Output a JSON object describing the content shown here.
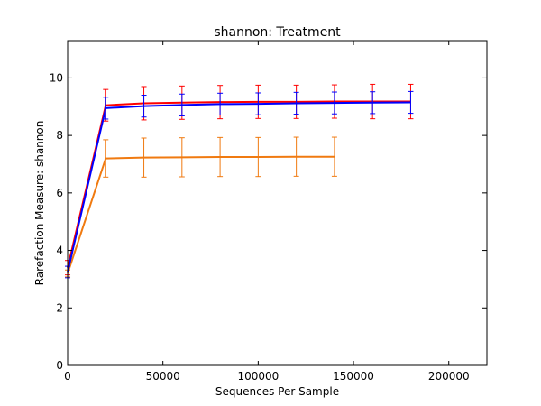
{
  "chart_data": {
    "type": "line",
    "title": "shannon: Treatment",
    "xlabel": "Sequences Per Sample",
    "ylabel": "Rarefaction Measure: shannon",
    "xlim": [
      0,
      220000
    ],
    "ylim": [
      0,
      11.3
    ],
    "x_ticks": [
      0,
      50000,
      100000,
      150000,
      200000
    ],
    "y_ticks": [
      0,
      2,
      4,
      6,
      8,
      10
    ],
    "grid": false,
    "legend": "none",
    "series": [
      {
        "color": "#ff0000",
        "x": [
          10,
          20000,
          40000,
          60000,
          80000,
          100000,
          120000,
          140000,
          160000,
          180000
        ],
        "y": [
          3.4,
          9.05,
          9.12,
          9.14,
          9.16,
          9.17,
          9.17,
          9.18,
          9.18,
          9.18
        ],
        "err": [
          0.25,
          0.55,
          0.58,
          0.58,
          0.58,
          0.58,
          0.58,
          0.58,
          0.6,
          0.6
        ]
      },
      {
        "color": "#0000ff",
        "x": [
          10,
          20000,
          40000,
          60000,
          80000,
          100000,
          120000,
          140000,
          160000,
          180000
        ],
        "y": [
          3.25,
          8.95,
          9.02,
          9.06,
          9.09,
          9.1,
          9.12,
          9.13,
          9.14,
          9.15
        ],
        "err": [
          0.2,
          0.38,
          0.38,
          0.38,
          0.38,
          0.38,
          0.38,
          0.38,
          0.38,
          0.38
        ]
      },
      {
        "color": "#f07a10",
        "x": [
          10,
          20000,
          40000,
          60000,
          80000,
          100000,
          120000,
          140000
        ],
        "y": [
          3.2,
          7.2,
          7.23,
          7.24,
          7.25,
          7.25,
          7.26,
          7.26
        ],
        "err": [
          0.12,
          0.65,
          0.68,
          0.68,
          0.68,
          0.68,
          0.68,
          0.68
        ]
      }
    ]
  }
}
